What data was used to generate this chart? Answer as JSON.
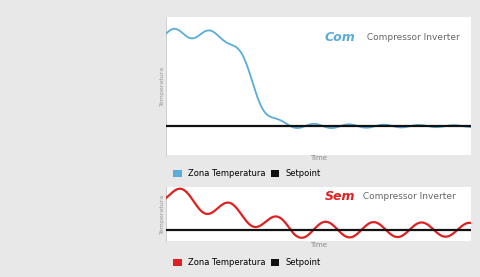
{
  "fig_width": 4.81,
  "fig_height": 2.77,
  "dpi": 100,
  "bg_color": "#e8e8e8",
  "chart_bg": "#ffffff",
  "time_strip_color": "#d8d8d8",
  "top_title_com": "Com",
  "top_title_sem": "Sem",
  "subtitle": " Compressor Inverter",
  "com_color": "#5bacd8",
  "sem_color": "#e02020",
  "setpoint_color": "#111111",
  "ylabel": "Temperatura",
  "xlabel": "Time",
  "legend_zona_com": "Zona Temperatura",
  "legend_setpoint": "Setpoint",
  "com_title_fontsize": 9,
  "sem_title_fontsize": 9,
  "sub_title_fontsize": 6.5,
  "ylabel_fontsize": 4.5,
  "xlabel_fontsize": 5,
  "legend_fontsize": 6
}
